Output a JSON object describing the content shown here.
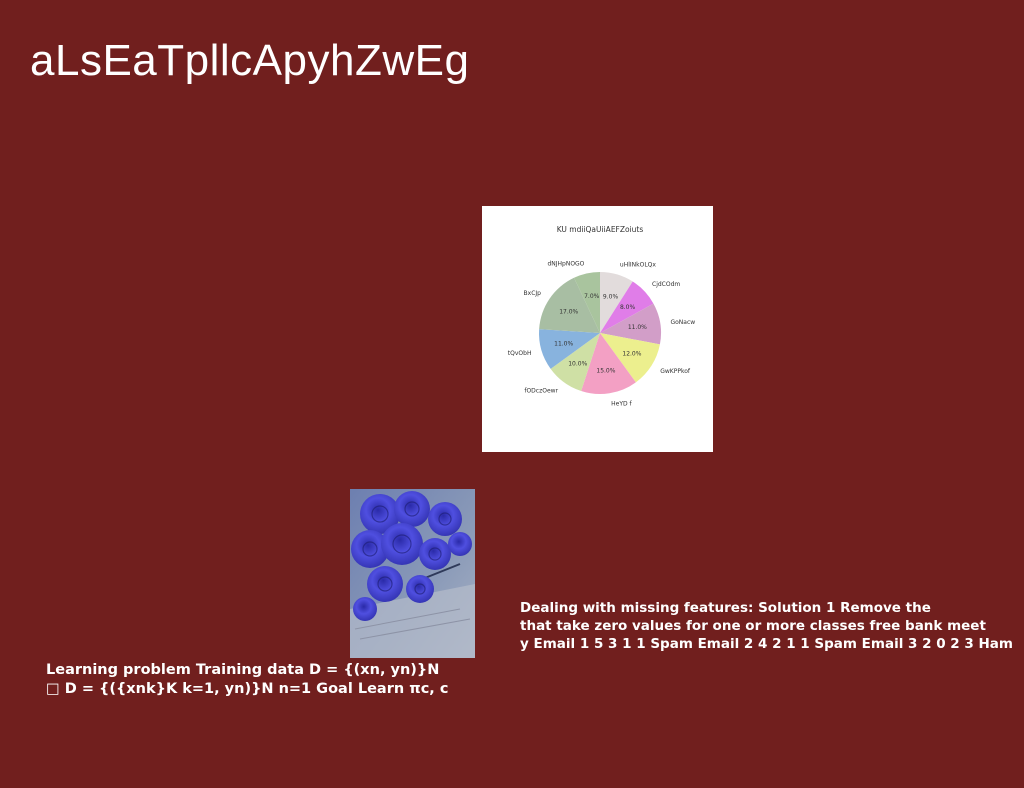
{
  "title": "aLsEaTpllcApyhZwEg",
  "colors": {
    "background": "#711f1e",
    "text": "#ffffff"
  },
  "chart_data": {
    "type": "pie",
    "title": "KU mdiiQaUiiAEFZoiuts",
    "slices": [
      {
        "label": "uHlINkOLQx",
        "value": 9.0,
        "color": "#e2dcdc"
      },
      {
        "label": "CjdCOdm",
        "value": 8.0,
        "color": "#e07de8"
      },
      {
        "label": "GoNacw",
        "value": 11.0,
        "color": "#d29ec8"
      },
      {
        "label": "GwKPPkof",
        "value": 12.0,
        "color": "#ecef8e"
      },
      {
        "label": "HeYD f",
        "value": 15.0,
        "color": "#f3a0c4"
      },
      {
        "label": "fODczOewr",
        "value": 10.0,
        "color": "#cfe0a5"
      },
      {
        "label": "tQvObH",
        "value": 11.0,
        "color": "#88b3de"
      },
      {
        "label": "BxCJp",
        "value": 17.0,
        "color": "#a8bea3"
      },
      {
        "label": "dNJHpNOGO",
        "value": 7.0,
        "color": "#a9c49e"
      }
    ],
    "value_format": "percent_one_decimal",
    "start": "top",
    "direction": "clockwise",
    "legend": "none"
  },
  "photo": {
    "subject": "blue roses on an open book"
  },
  "text_right": [
    "Dealing with missing features: Solution 1 Remove the",
    "that take zero values for one or more classes free bank meet",
    "y Email 1 5 3 1 1 Spam Email 2 4 2 1 1 Spam Email 3 2 0 2 3 Ham"
  ],
  "text_left": [
    "Learning problem Training data D = {(xn, yn)}N",
    "□ D = {({xnk}K k=1, yn)}N n=1 Goal Learn πc, c"
  ]
}
